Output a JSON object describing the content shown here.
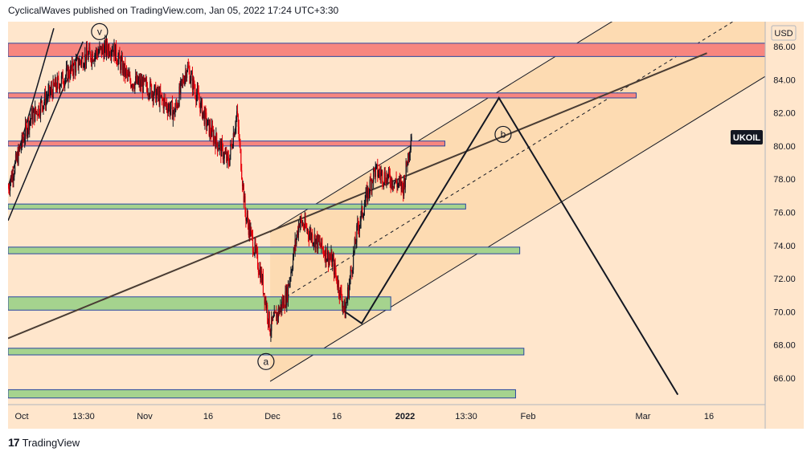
{
  "header": {
    "publish_line": "CyclicalWaves published on TradingView.com, Jan 05, 2022 17:24 UTC+3:30"
  },
  "footer": {
    "brand": "TradingView",
    "logo_glyph": "17"
  },
  "colors": {
    "background": "#ffe6cc",
    "candle_up": "#131722",
    "candle_down": "#e8000b",
    "zone_red": "#f7867f",
    "zone_green": "#a5d38e",
    "zone_border": "#2846a0",
    "channel_fill": "#fcd5a6",
    "label_bg": "#131722"
  },
  "chart_data": {
    "type": "candlestick",
    "symbol_label": "UKOIL",
    "currency": "USD",
    "ylim": [
      64.4,
      87.5
    ],
    "y_ticks": [
      "86.00",
      "84.00",
      "82.00",
      "80.00",
      "78.00",
      "76.00",
      "74.00",
      "72.00",
      "70.00",
      "68.00",
      "66.00"
    ],
    "x_ticks": [
      "Oct",
      "13:30",
      "Nov",
      "16",
      "Dec",
      "16",
      "2022",
      "13:30",
      "Feb",
      "Mar",
      "16"
    ],
    "price_path": [
      {
        "date": "2021-09-30",
        "price": 77.5
      },
      {
        "date": "2021-10-05",
        "price": 81.5
      },
      {
        "date": "2021-10-11",
        "price": 83.5
      },
      {
        "date": "2021-10-18",
        "price": 85.3
      },
      {
        "date": "2021-10-25",
        "price": 86.0
      },
      {
        "date": "2021-10-29",
        "price": 84.0
      },
      {
        "date": "2021-11-03",
        "price": 83.5
      },
      {
        "date": "2021-11-09",
        "price": 82.0
      },
      {
        "date": "2021-11-12",
        "price": 84.8
      },
      {
        "date": "2021-11-17",
        "price": 81.2
      },
      {
        "date": "2021-11-22",
        "price": 79.0
      },
      {
        "date": "2021-11-24",
        "price": 82.0
      },
      {
        "date": "2021-11-26",
        "price": 76.0
      },
      {
        "date": "2021-11-30",
        "price": 72.0
      },
      {
        "date": "2021-12-02",
        "price": 69.0
      },
      {
        "date": "2021-12-06",
        "price": 71.0
      },
      {
        "date": "2021-12-09",
        "price": 75.5
      },
      {
        "date": "2021-12-14",
        "price": 74.0
      },
      {
        "date": "2021-12-17",
        "price": 73.0
      },
      {
        "date": "2021-12-20",
        "price": 70.0
      },
      {
        "date": "2021-12-23",
        "price": 75.0
      },
      {
        "date": "2021-12-27",
        "price": 78.5
      },
      {
        "date": "2021-12-31",
        "price": 78.0
      },
      {
        "date": "2022-01-03",
        "price": 77.5
      },
      {
        "date": "2022-01-05",
        "price": 80.8
      }
    ],
    "zones": [
      {
        "kind": "resistance",
        "top": 86.2,
        "bottom": 85.4,
        "end": "2022-03-31"
      },
      {
        "kind": "resistance",
        "top": 83.2,
        "bottom": 82.9,
        "end": "2022-02-28"
      },
      {
        "kind": "resistance",
        "top": 80.3,
        "bottom": 80.0,
        "end": "2022-01-13"
      },
      {
        "kind": "support",
        "top": 76.5,
        "bottom": 76.2,
        "end": "2022-01-18"
      },
      {
        "kind": "support",
        "top": 73.9,
        "bottom": 73.5,
        "end": "2022-01-31"
      },
      {
        "kind": "support",
        "top": 70.9,
        "bottom": 70.1,
        "end": "2021-12-31"
      },
      {
        "kind": "support",
        "top": 67.8,
        "bottom": 67.4,
        "end": "2022-02-01"
      },
      {
        "kind": "support",
        "top": 65.3,
        "bottom": 64.8,
        "end": "2022-01-30"
      }
    ],
    "projection_path": [
      {
        "date": "2021-12-20",
        "price": 70.0
      },
      {
        "date": "2021-12-24",
        "price": 69.3
      },
      {
        "date": "2022-01-26",
        "price": 82.9
      },
      {
        "date": "2022-03-10",
        "price": 65.0
      }
    ],
    "wave_labels": [
      {
        "text": "v",
        "date": "2021-10-22",
        "price": 86.9
      },
      {
        "text": "a",
        "date": "2021-12-01",
        "price": 67.0
      },
      {
        "text": "b",
        "date": "2022-01-27",
        "price": 80.7
      }
    ]
  }
}
